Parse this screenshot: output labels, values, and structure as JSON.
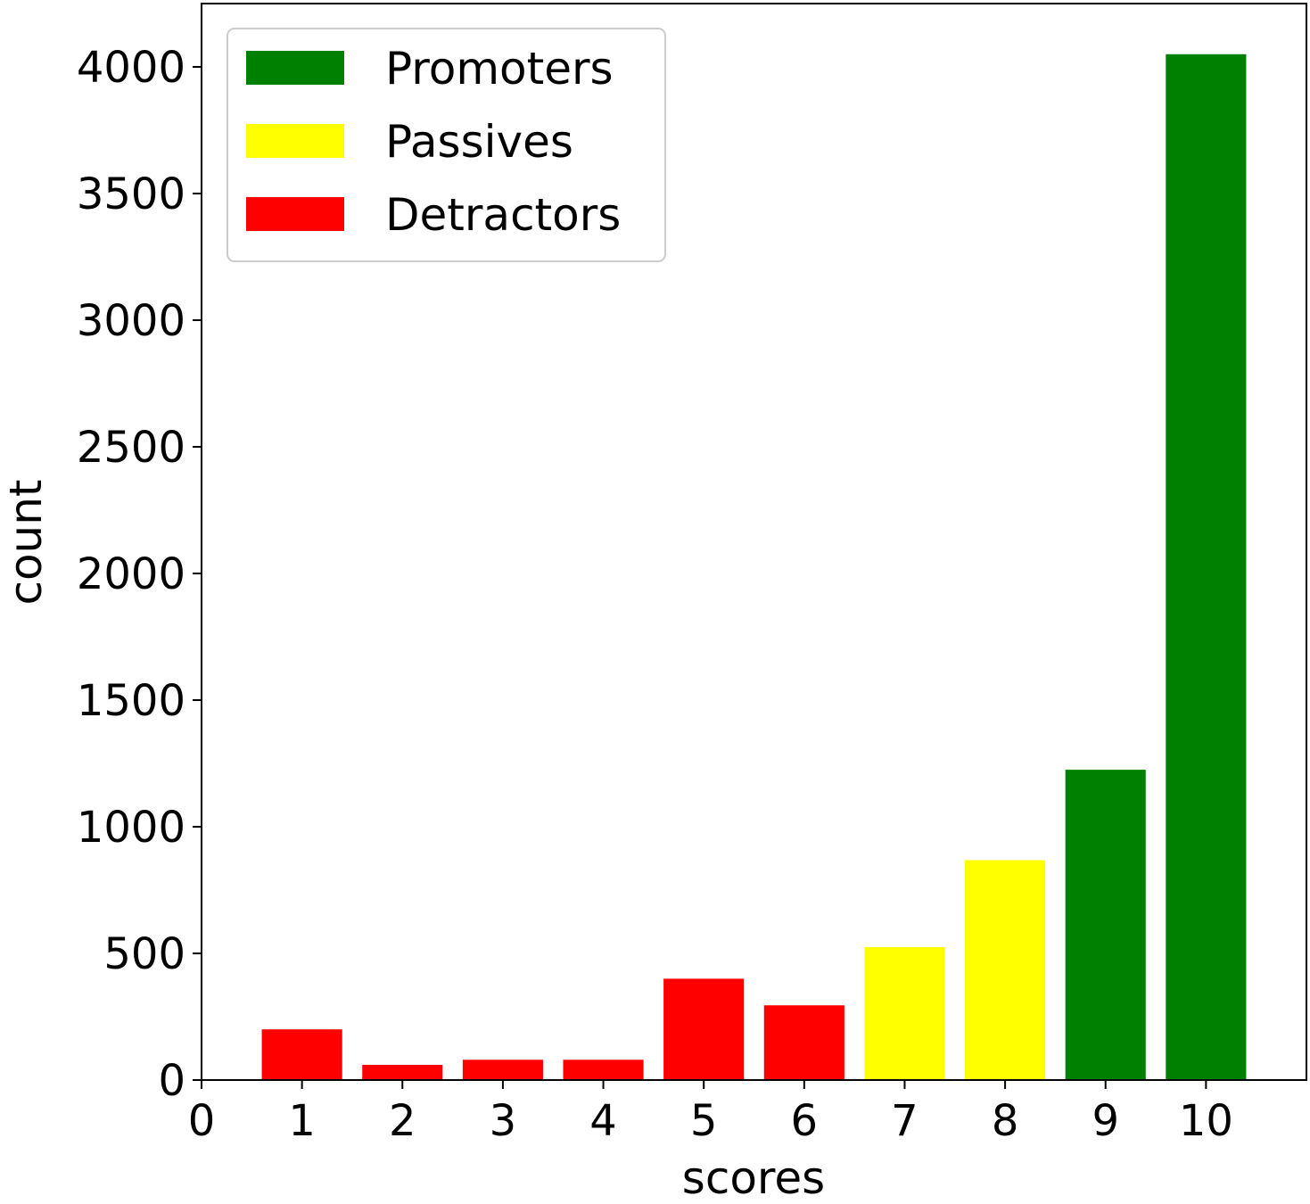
{
  "chart_data": {
    "type": "bar",
    "x": [
      1,
      2,
      3,
      4,
      5,
      6,
      7,
      8,
      9,
      10
    ],
    "values": [
      200,
      60,
      80,
      80,
      400,
      295,
      525,
      868,
      1225,
      4050
    ],
    "bar_groups": [
      "Detractors",
      "Detractors",
      "Detractors",
      "Detractors",
      "Detractors",
      "Detractors",
      "Passives",
      "Passives",
      "Promoters",
      "Promoters"
    ],
    "series": [
      {
        "name": "Promoters",
        "color": "#008000"
      },
      {
        "name": "Passives",
        "color": "#ffff00"
      },
      {
        "name": "Detractors",
        "color": "#ff0000"
      }
    ],
    "xlabel": "scores",
    "ylabel": "count",
    "xlim": [
      0,
      11
    ],
    "ylim": [
      0,
      4250
    ],
    "xticks": [
      0,
      1,
      2,
      3,
      4,
      5,
      6,
      7,
      8,
      9,
      10
    ],
    "yticks": [
      0,
      500,
      1000,
      1500,
      2000,
      2500,
      3000,
      3500,
      4000
    ],
    "grid": false,
    "legend_position": "top-left"
  }
}
